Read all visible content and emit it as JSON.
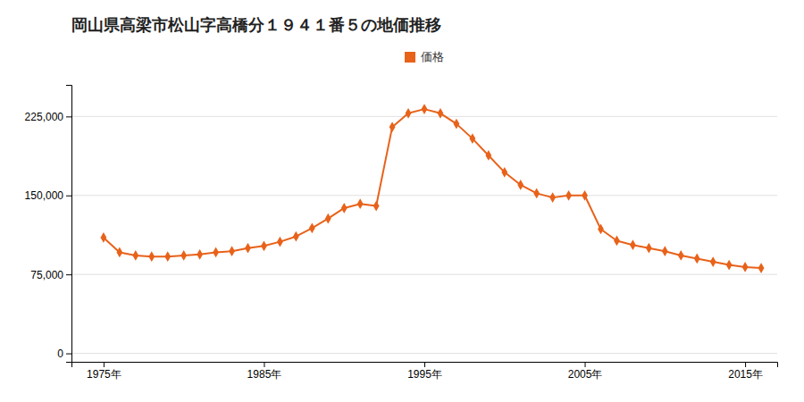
{
  "chart_data": {
    "type": "line",
    "title": "岡山県高梁市松山字高橋分１９４１番５の地価推移",
    "x": [
      1975,
      1976,
      1977,
      1978,
      1979,
      1980,
      1981,
      1982,
      1983,
      1984,
      1985,
      1986,
      1987,
      1988,
      1989,
      1990,
      1991,
      1992,
      1993,
      1994,
      1995,
      1996,
      1997,
      1998,
      1999,
      2000,
      2001,
      2002,
      2003,
      2004,
      2005,
      2006,
      2007,
      2008,
      2009,
      2010,
      2011,
      2012,
      2013,
      2014,
      2015,
      2016
    ],
    "series": [
      {
        "name": "価格",
        "color": "#e8621a",
        "marker": "diamond",
        "line_style": "solid",
        "values": [
          110000,
          96000,
          93000,
          92000,
          92000,
          93000,
          94000,
          96000,
          97000,
          100000,
          102000,
          106000,
          111000,
          119000,
          128000,
          138000,
          142000,
          140000,
          215000,
          228000,
          232000,
          228000,
          218000,
          204000,
          188000,
          172000,
          160000,
          152000,
          148000,
          150000,
          150000,
          118000,
          107000,
          103000,
          100000,
          97000,
          93000,
          90000,
          87000,
          84000,
          82000,
          81000
        ]
      }
    ],
    "xlim": [
      1973,
      2017
    ],
    "xticks": [
      {
        "value": 1975,
        "label": "1975年"
      },
      {
        "value": 1985,
        "label": "1985年"
      },
      {
        "value": 1995,
        "label": "1995年"
      },
      {
        "value": 2005,
        "label": "2005年"
      },
      {
        "value": 2015,
        "label": "2015年"
      }
    ],
    "ylim": [
      -8000,
      255000
    ],
    "yticks": [
      0,
      {
        "value": 75000,
        "label": "75,000"
      },
      {
        "value": 150000,
        "label": "150,000"
      },
      {
        "value": 225000,
        "label": "225,000"
      }
    ],
    "grid": true,
    "legend": "top"
  }
}
